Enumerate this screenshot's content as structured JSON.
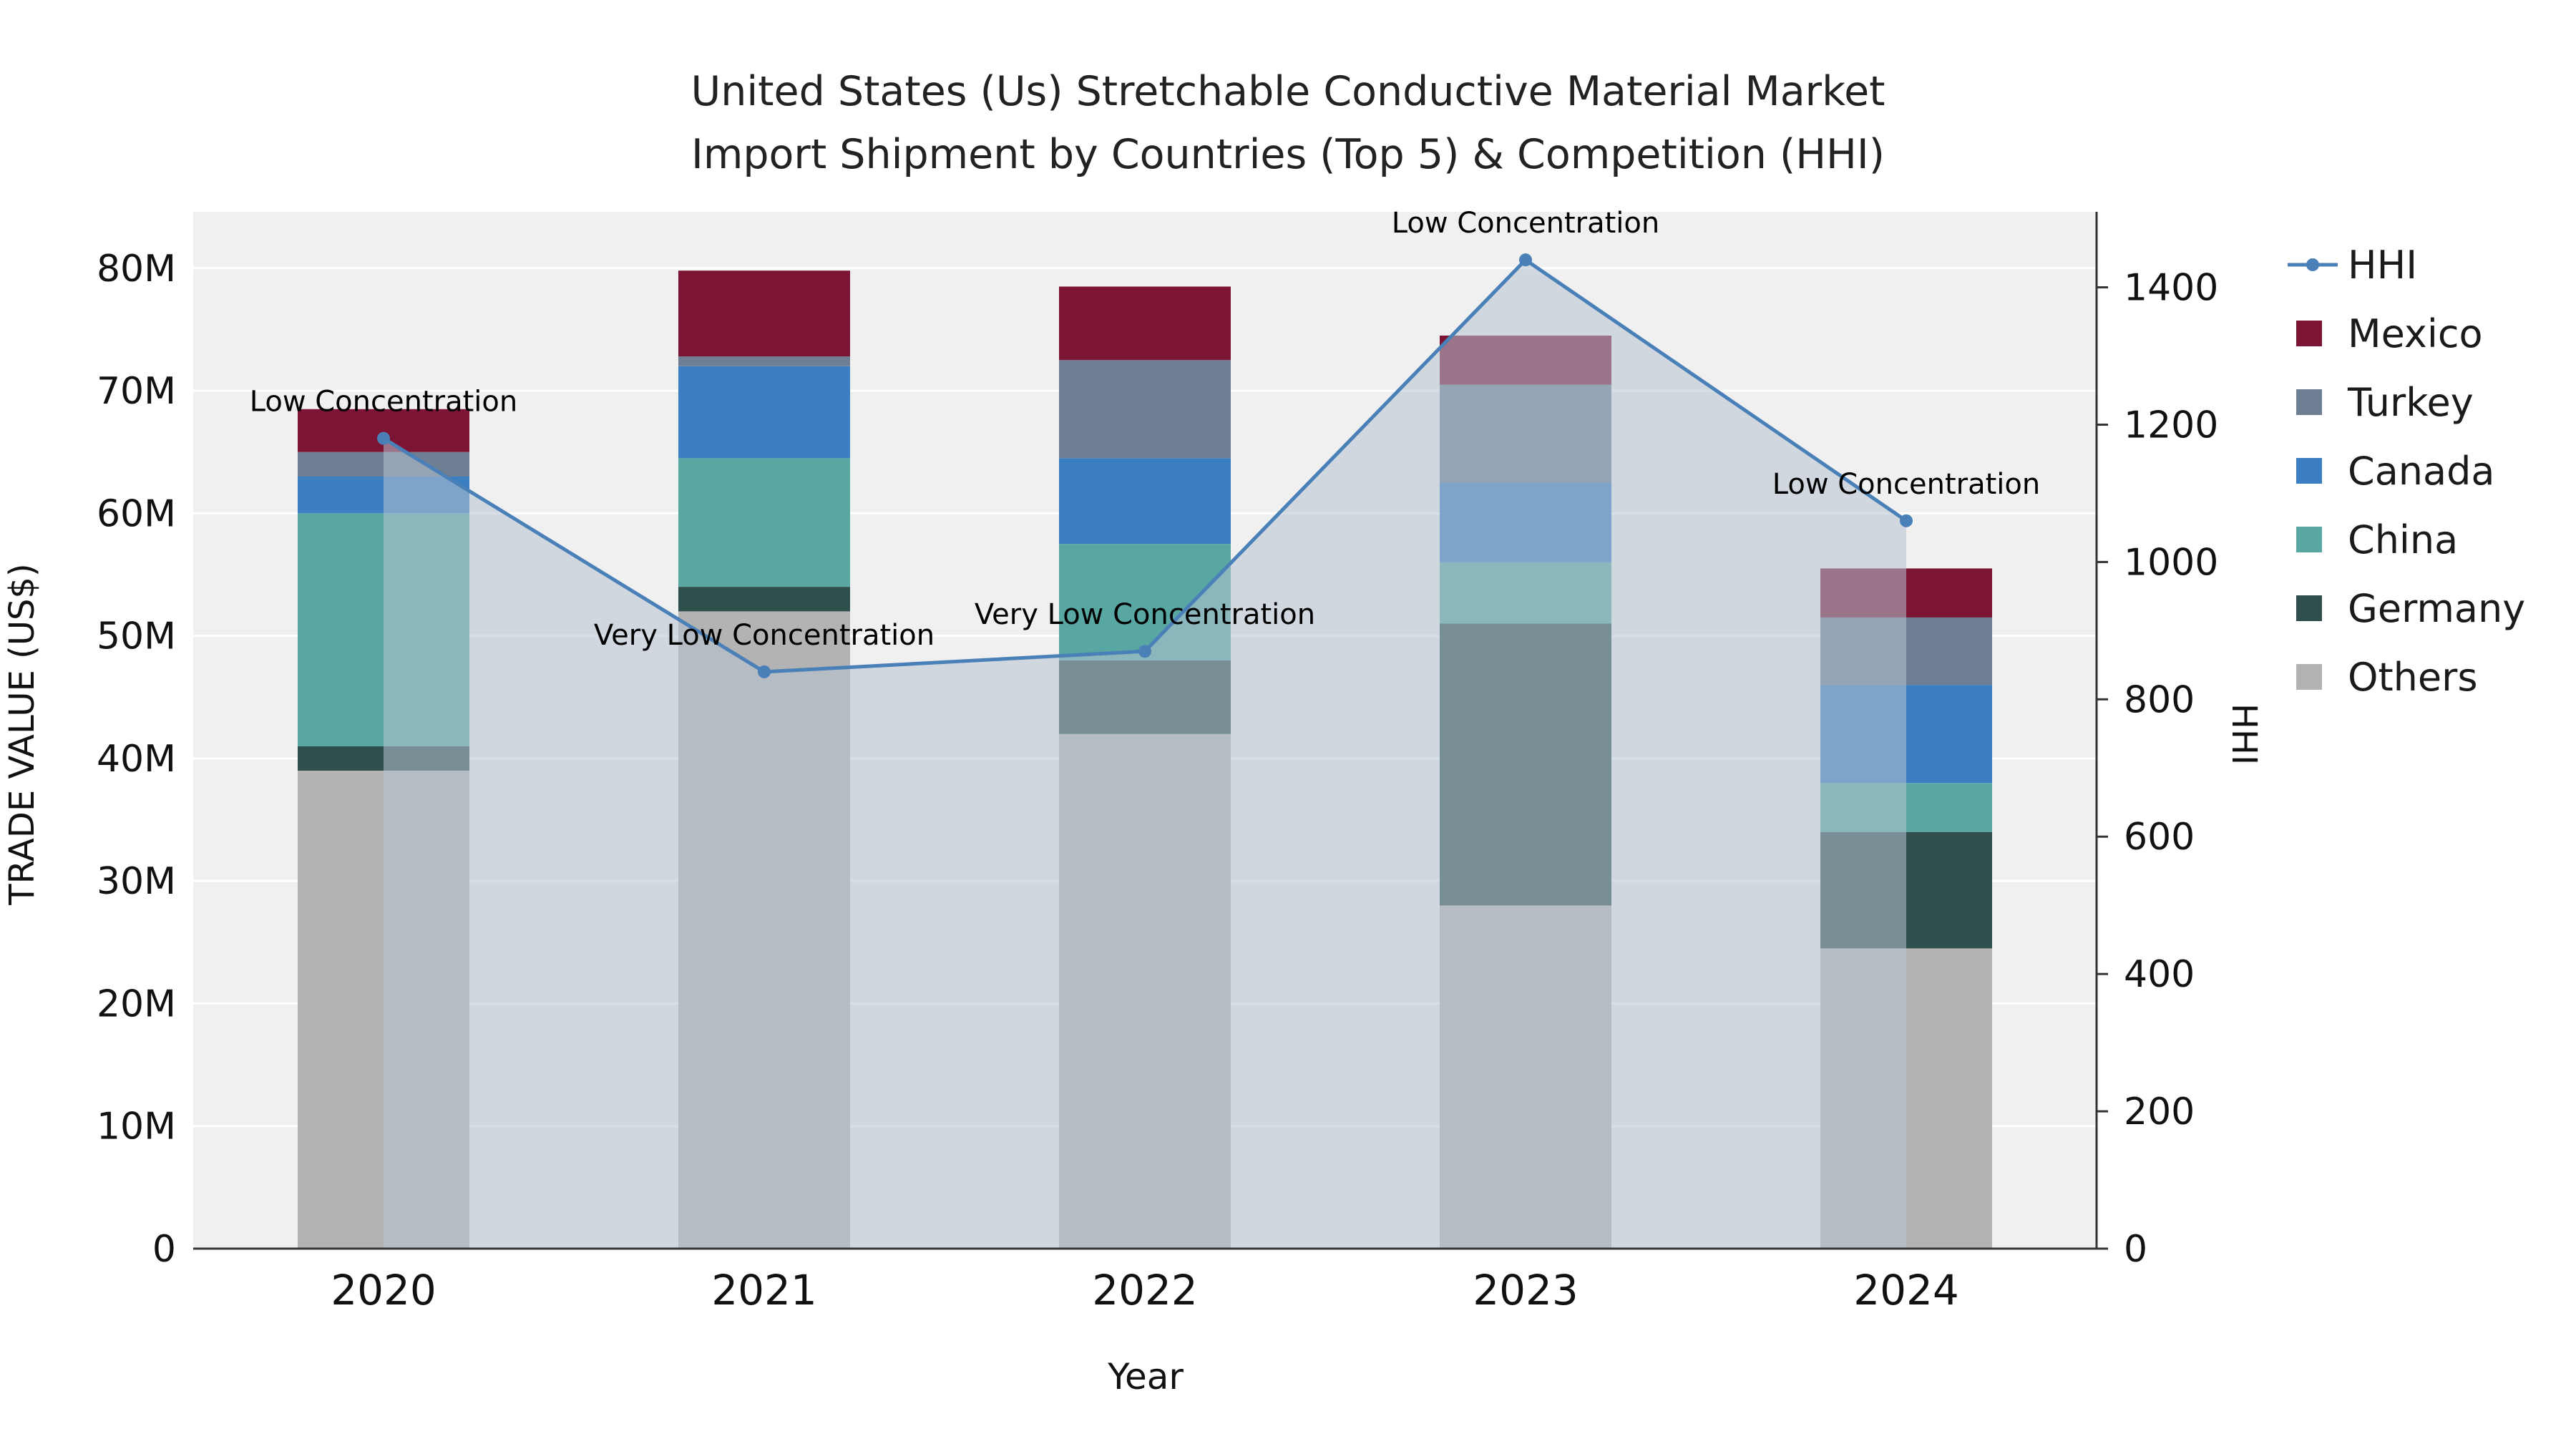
{
  "title": {
    "line1": "United States (Us) Stretchable Conductive Material Market",
    "line2": "Import Shipment by Countries (Top 5) & Competition (HHI)"
  },
  "chart_data": {
    "type": "combo-stacked-bar-line",
    "title": "United States (Us) Stretchable Conductive Material Market Import Shipment by Countries (Top 5) & Competition (HHI)",
    "xlabel": "Year",
    "ylabel_left": "TRADE VALUE (US$)",
    "ylabel_right": "HHI",
    "categories": [
      "2020",
      "2021",
      "2022",
      "2023",
      "2024"
    ],
    "bar_series_top_to_bottom": [
      {
        "name": "Mexico",
        "color": "#7c1533",
        "values_musd": [
          3.5,
          7.0,
          6.0,
          4.0,
          4.0
        ]
      },
      {
        "name": "Turkey",
        "color": "#6e7e93",
        "values_musd": [
          2.0,
          0.8,
          8.0,
          8.0,
          5.5
        ]
      },
      {
        "name": "Canada",
        "color": "#3b7ec2",
        "values_musd": [
          3.0,
          7.5,
          7.0,
          6.5,
          8.0
        ]
      },
      {
        "name": "China",
        "color": "#58a7a3",
        "values_musd": [
          19.0,
          10.5,
          9.5,
          5.0,
          4.0
        ]
      },
      {
        "name": "Germany",
        "color": "#2e4f4c",
        "values_musd": [
          2.0,
          2.0,
          6.0,
          23.0,
          9.5
        ]
      },
      {
        "name": "Others",
        "color": "#b3b3b3",
        "values_musd": [
          39.0,
          52.0,
          42.0,
          28.0,
          24.5
        ]
      }
    ],
    "bar_totals_musd": [
      68.5,
      79.8,
      78.5,
      74.5,
      55.5
    ],
    "hhi_series": {
      "name": "HHI",
      "color": "#4a80b8",
      "area_fill": "rgba(183,195,210,0.55)",
      "values": [
        1180,
        840,
        870,
        1440,
        1060
      ],
      "annotations": [
        "Low Concentration",
        "Very Low Concentration",
        "Very Low Concentration",
        "Low Concentration",
        "Low Concentration"
      ]
    },
    "left_axis": {
      "tick_labels": [
        "0",
        "10M",
        "20M",
        "30M",
        "40M",
        "50M",
        "60M",
        "70M",
        "80M"
      ],
      "tick_values_musd": [
        0,
        10,
        20,
        30,
        40,
        50,
        60,
        70,
        80
      ]
    },
    "right_axis": {
      "tick_labels": [
        "0",
        "200",
        "400",
        "600",
        "800",
        "1000",
        "1200",
        "1400"
      ],
      "tick_values": [
        0,
        200,
        400,
        600,
        800,
        1000,
        1200,
        1400
      ]
    },
    "legend": [
      {
        "label": "HHI",
        "marker": "line",
        "color": "#4a80b8"
      },
      {
        "label": "Mexico",
        "marker": "square",
        "color": "#7c1533"
      },
      {
        "label": "Turkey",
        "marker": "square",
        "color": "#6e7e93"
      },
      {
        "label": "Canada",
        "marker": "square",
        "color": "#3b7ec2"
      },
      {
        "label": "China",
        "marker": "square",
        "color": "#58a7a3"
      },
      {
        "label": "Germany",
        "marker": "square",
        "color": "#2e4f4c"
      },
      {
        "label": "Others",
        "marker": "square",
        "color": "#b3b3b3"
      }
    ],
    "plot_background": "#f0f0f0",
    "grid_color": "#ffffff"
  }
}
